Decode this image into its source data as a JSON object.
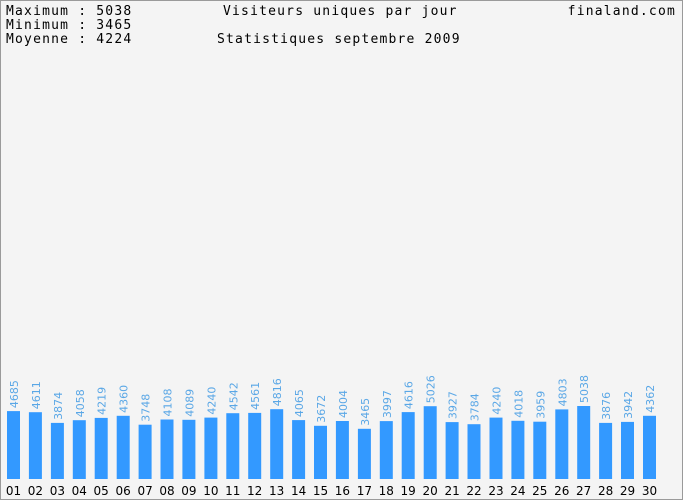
{
  "stats": {
    "maximum": "Maximum : 5038",
    "minimum": "Minimum : 3465",
    "average": "Moyenne : 4224"
  },
  "site": "finaland.com",
  "colors": {
    "bar": "#3399ff",
    "value_label": "#5aa7e6",
    "background": "#f4f4f4"
  },
  "chart_data": {
    "type": "bar",
    "title": "Visiteurs uniques par jour",
    "subtitle": "Statistiques septembre 2009",
    "categories": [
      "01",
      "02",
      "03",
      "04",
      "05",
      "06",
      "07",
      "08",
      "09",
      "10",
      "11",
      "12",
      "13",
      "14",
      "15",
      "16",
      "17",
      "18",
      "19",
      "20",
      "21",
      "22",
      "23",
      "24",
      "25",
      "26",
      "27",
      "28",
      "29",
      "30"
    ],
    "values": [
      4685,
      4611,
      3874,
      4058,
      4219,
      4360,
      3748,
      4108,
      4089,
      4240,
      4542,
      4561,
      4816,
      4065,
      3672,
      4004,
      3465,
      3997,
      4616,
      5026,
      3927,
      3784,
      4240,
      4018,
      3959,
      4803,
      5038,
      3876,
      3942,
      4362
    ],
    "ylim": [
      0,
      33000
    ],
    "grid": false,
    "legend": "none"
  }
}
